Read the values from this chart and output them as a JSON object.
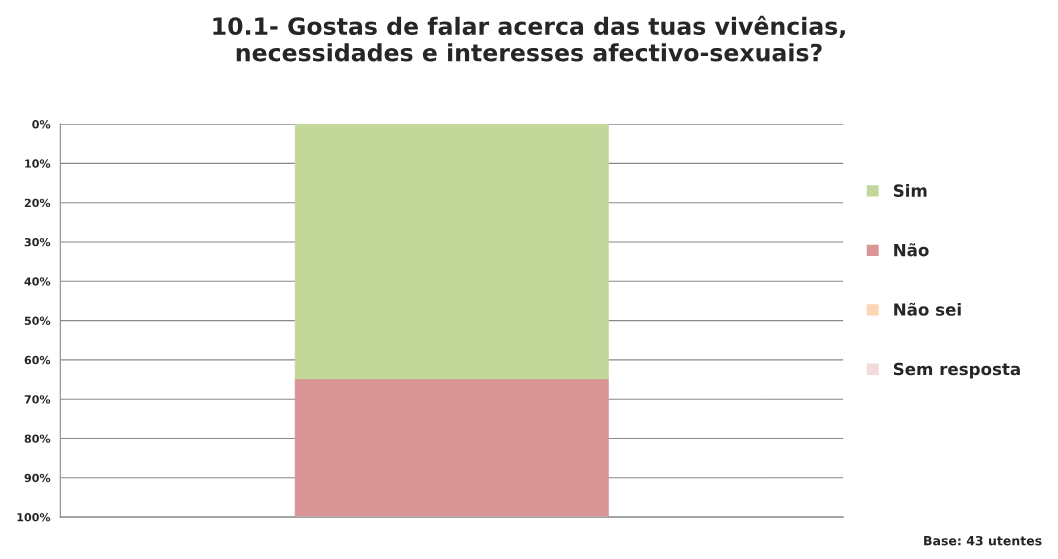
{
  "chart_data": {
    "type": "bar",
    "title": "10.1- Gostas de falar acerca das tuas vivências,\nnecessidades e interesses afectivo-sexuais?",
    "categories": [
      null
    ],
    "stacked": true,
    "series": [
      {
        "name": "Sim",
        "color": "#c4d79b",
        "values": [
          65
        ]
      },
      {
        "name": "Não",
        "color": "#d99694",
        "values": [
          35
        ]
      },
      {
        "name": "Não sei",
        "color": "#fcd5b5",
        "values": [
          0
        ]
      },
      {
        "name": "Sem resposta",
        "color": "#f2dcdb",
        "values": [
          0
        ]
      }
    ],
    "ylim": [
      100,
      0
    ],
    "yticks": [
      {
        "value": 0,
        "label": "0%"
      },
      {
        "value": 10,
        "label": "10%"
      },
      {
        "value": 20,
        "label": "20%"
      },
      {
        "value": 30,
        "label": "30%"
      },
      {
        "value": 40,
        "label": "40%"
      },
      {
        "value": 50,
        "label": "50%"
      },
      {
        "value": 60,
        "label": "60%"
      },
      {
        "value": 70,
        "label": "70%"
      },
      {
        "value": 80,
        "label": "80%"
      },
      {
        "value": 90,
        "label": "90%"
      },
      {
        "value": 100,
        "label": "100%"
      }
    ],
    "grid": "y",
    "legend": "right",
    "annotations": [
      "Base: 43 utentes"
    ]
  }
}
